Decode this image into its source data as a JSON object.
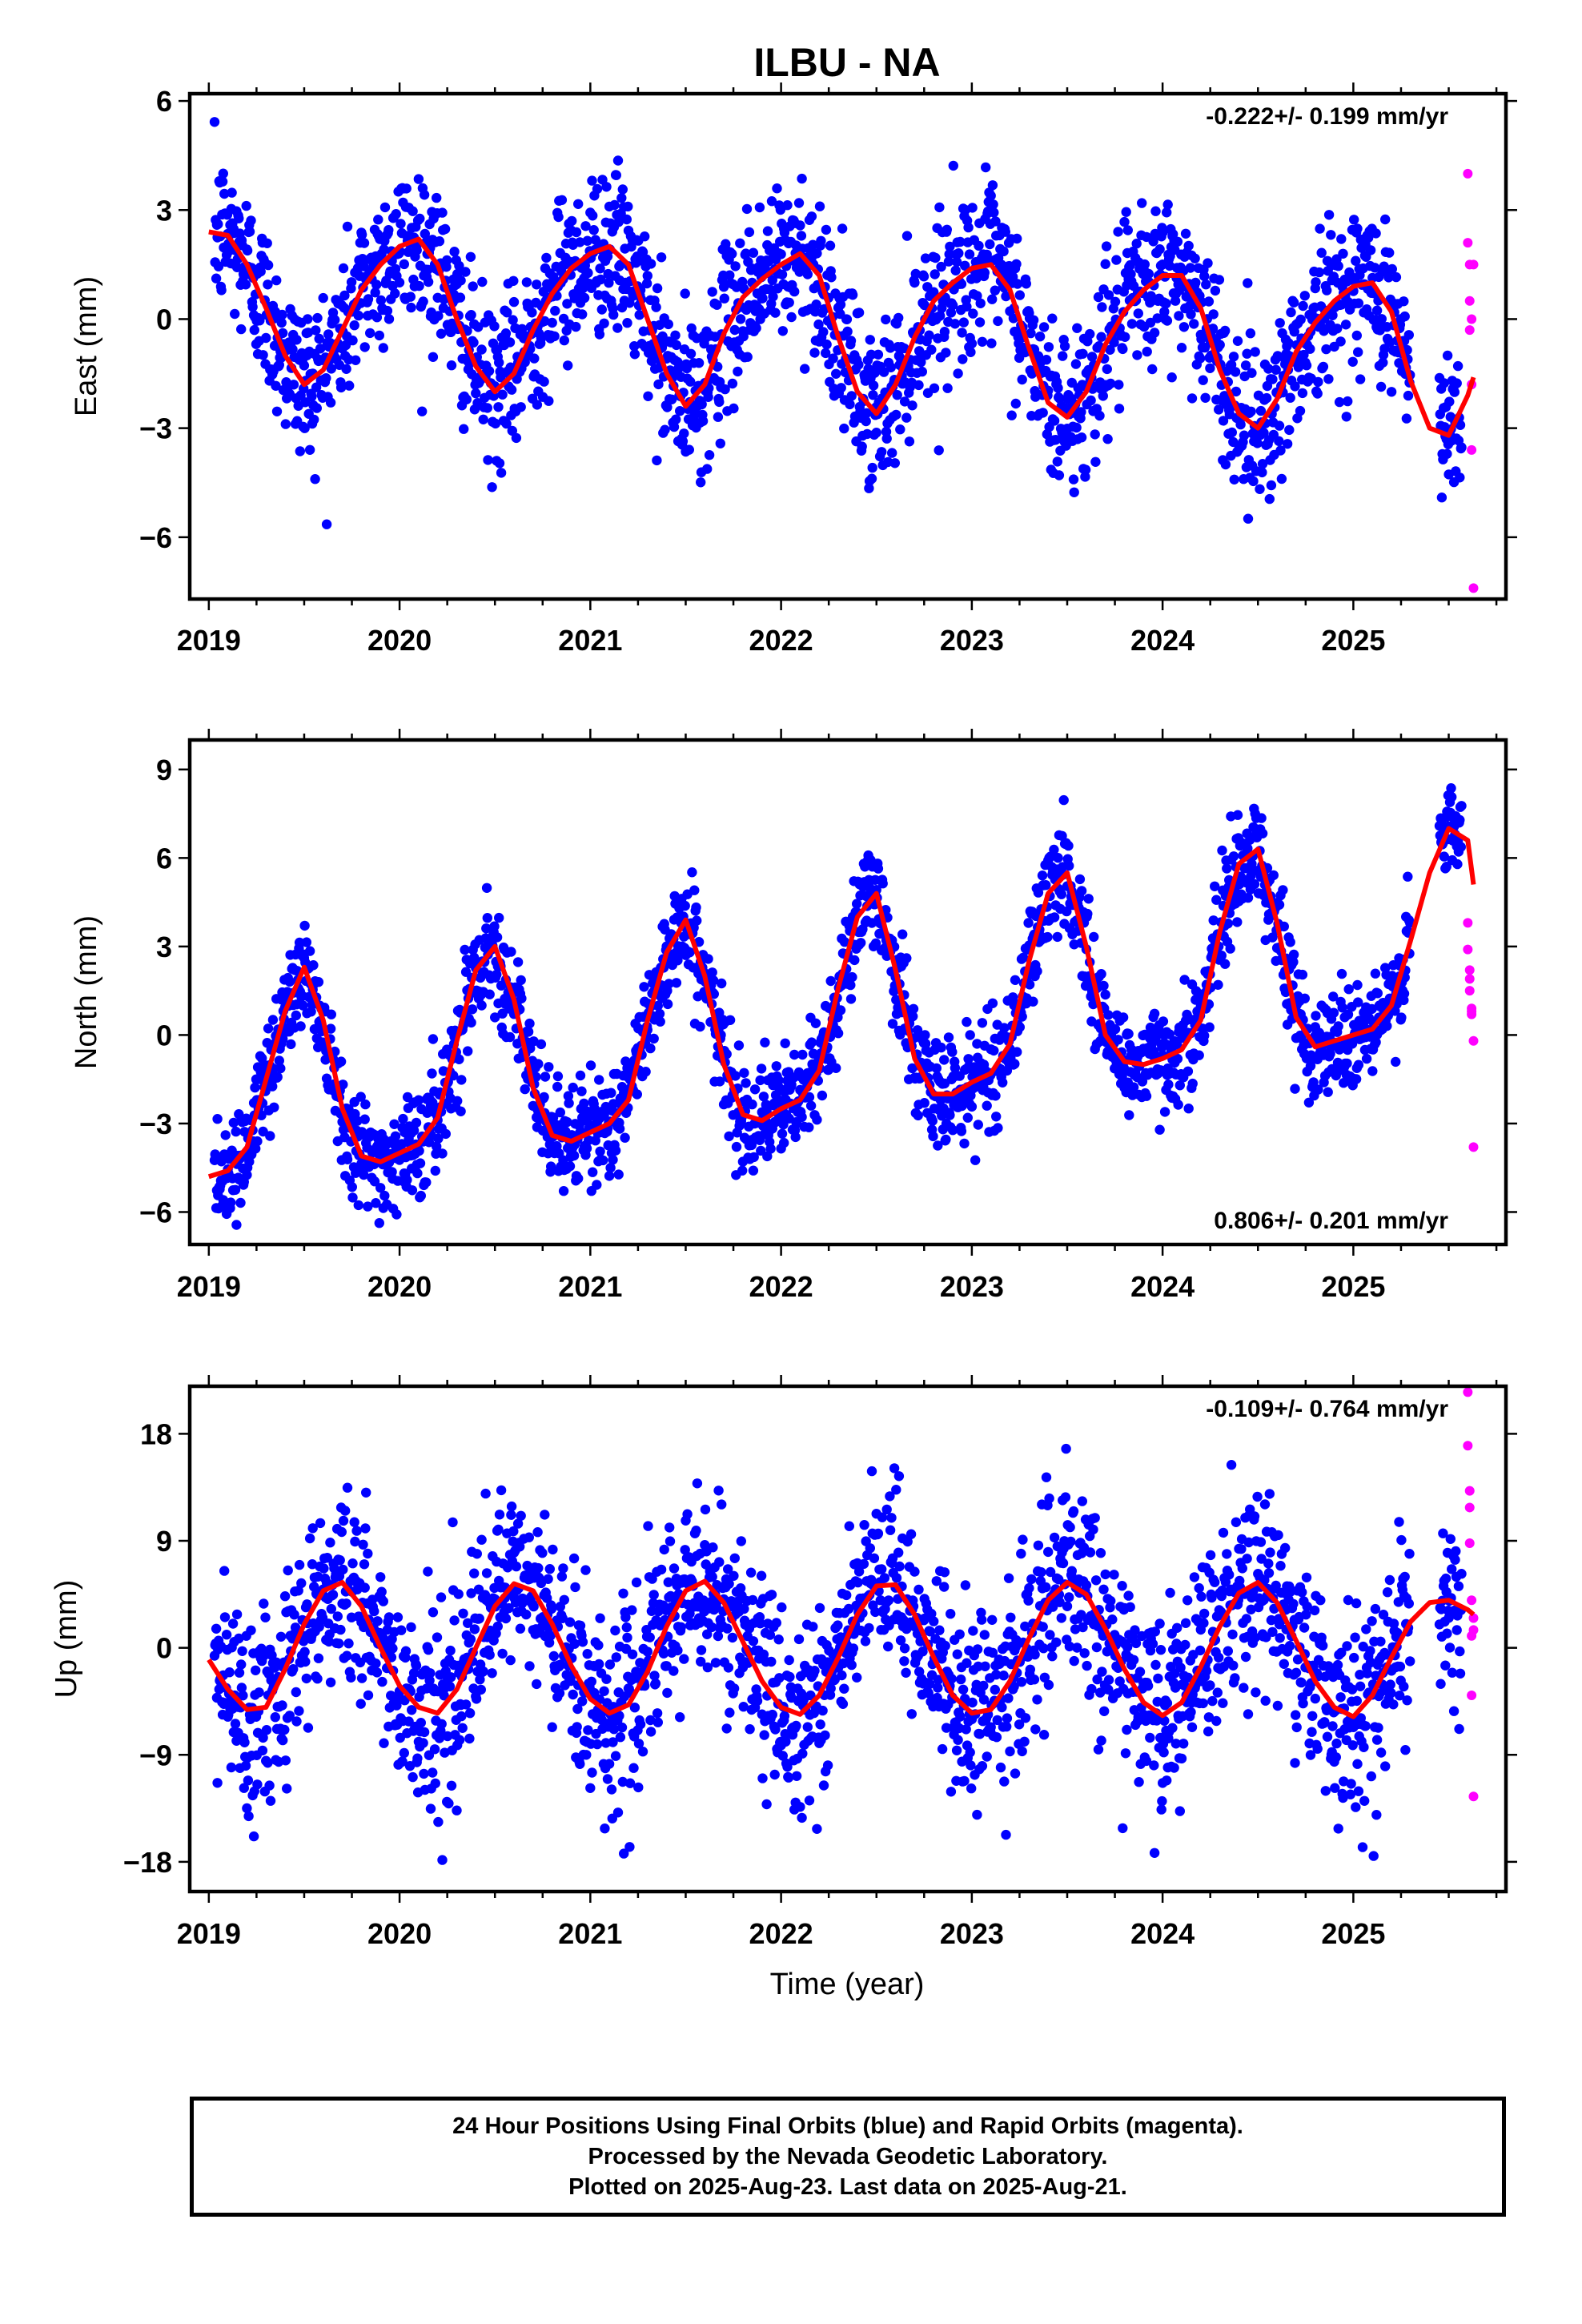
{
  "chart_data": {
    "title": "ILBU - NA",
    "type": "scatter",
    "xlabel": "Time (year)",
    "xlim": [
      2018.9,
      2025.8
    ],
    "x_ticks": [
      "2019",
      "2020",
      "2021",
      "2022",
      "2023",
      "2024",
      "2025"
    ],
    "colors": {
      "final": "#0000ff",
      "rapid": "#ff00ff",
      "fit": "#ff0000"
    },
    "panels": [
      {
        "id": "east",
        "ylabel": "East (mm)",
        "ylim": [
          -7.7,
          6.2
        ],
        "y_ticks": [
          -6,
          -3,
          0,
          3,
          6
        ],
        "y_tick_labels": [
          "−6",
          "−3",
          "0",
          "3",
          "6"
        ],
        "rate_label": "-0.222+/- 0.199 mm/yr",
        "rate_position": "top-right",
        "fit_x": [
          2019.0,
          2019.1,
          2019.2,
          2019.3,
          2019.4,
          2019.5,
          2019.6,
          2019.7,
          2019.8,
          2019.9,
          2020.0,
          2020.1,
          2020.2,
          2020.3,
          2020.4,
          2020.5,
          2020.6,
          2020.7,
          2020.8,
          2020.9,
          2021.0,
          2021.1,
          2021.2,
          2021.3,
          2021.4,
          2021.5,
          2021.6,
          2021.7,
          2021.8,
          2021.9,
          2022.0,
          2022.1,
          2022.2,
          2022.3,
          2022.4,
          2022.5,
          2022.6,
          2022.7,
          2022.8,
          2022.9,
          2023.0,
          2023.1,
          2023.2,
          2023.3,
          2023.4,
          2023.5,
          2023.6,
          2023.7,
          2023.8,
          2023.9,
          2024.0,
          2024.1,
          2024.2,
          2024.3,
          2024.4,
          2024.5,
          2024.6,
          2024.7,
          2024.8,
          2024.9,
          2025.0,
          2025.1,
          2025.2,
          2025.3,
          2025.4,
          2025.5,
          2025.6,
          2025.63
        ],
        "fit_y": [
          2.4,
          2.3,
          1.5,
          0.3,
          -1.0,
          -1.8,
          -1.4,
          -0.3,
          0.8,
          1.5,
          2.0,
          2.2,
          1.5,
          0.0,
          -1.3,
          -2.0,
          -1.5,
          -0.3,
          0.7,
          1.4,
          1.8,
          2.0,
          1.5,
          0.0,
          -1.5,
          -2.4,
          -1.8,
          -0.4,
          0.6,
          1.1,
          1.5,
          1.8,
          1.2,
          -0.5,
          -2.0,
          -2.6,
          -1.8,
          -0.5,
          0.5,
          1.0,
          1.4,
          1.5,
          0.8,
          -0.8,
          -2.3,
          -2.7,
          -2.0,
          -0.7,
          0.2,
          0.8,
          1.2,
          1.2,
          0.3,
          -1.4,
          -2.6,
          -3.0,
          -2.2,
          -0.9,
          -0.1,
          0.5,
          0.9,
          1.0,
          0.2,
          -1.7,
          -3.0,
          -3.2,
          -2.1,
          -1.6
        ],
        "rapid_x": [
          2025.6,
          2025.6,
          2025.61,
          2025.61,
          2025.61,
          2025.62,
          2025.62,
          2025.62,
          2025.63,
          2025.63
        ],
        "rapid_y": [
          4.0,
          2.1,
          1.5,
          0.5,
          -0.3,
          0.0,
          -1.8,
          -3.6,
          1.5,
          -7.4
        ],
        "seasonal": {
          "amplitude": 2.2,
          "phase_year": 2019.05,
          "scatter": 1.1,
          "trend_start": 0.0,
          "trend_end": -1.0,
          "x_end": 2025.57
        }
      },
      {
        "id": "north",
        "ylabel": "North (mm)",
        "ylim": [
          -7.1,
          10.0
        ],
        "y_ticks": [
          -6,
          -3,
          0,
          3,
          6,
          9
        ],
        "y_tick_labels": [
          "−6",
          "−3",
          "0",
          "3",
          "6",
          "9"
        ],
        "rate_label": "0.806+/- 0.201 mm/yr",
        "rate_position": "bottom-right",
        "fit_x": [
          2019.0,
          2019.1,
          2019.2,
          2019.3,
          2019.4,
          2019.5,
          2019.6,
          2019.7,
          2019.8,
          2019.9,
          2020.0,
          2020.1,
          2020.2,
          2020.3,
          2020.4,
          2020.5,
          2020.6,
          2020.7,
          2020.8,
          2020.9,
          2021.0,
          2021.1,
          2021.2,
          2021.3,
          2021.4,
          2021.5,
          2021.6,
          2021.7,
          2021.8,
          2021.9,
          2022.0,
          2022.1,
          2022.2,
          2022.3,
          2022.4,
          2022.5,
          2022.6,
          2022.7,
          2022.8,
          2022.9,
          2023.0,
          2023.1,
          2023.2,
          2023.3,
          2023.4,
          2023.5,
          2023.6,
          2023.7,
          2023.8,
          2023.9,
          2024.0,
          2024.1,
          2024.2,
          2024.3,
          2024.4,
          2024.5,
          2024.6,
          2024.7,
          2024.8,
          2024.9,
          2025.0,
          2025.1,
          2025.2,
          2025.3,
          2025.4,
          2025.5,
          2025.6,
          2025.63
        ],
        "fit_y": [
          -4.8,
          -4.6,
          -3.8,
          -1.5,
          0.8,
          2.3,
          0.5,
          -2.5,
          -4.1,
          -4.3,
          -4.0,
          -3.7,
          -2.8,
          -0.2,
          2.2,
          3.0,
          1.2,
          -1.8,
          -3.4,
          -3.6,
          -3.3,
          -3.0,
          -2.2,
          0.5,
          2.8,
          3.9,
          2.0,
          -1.0,
          -2.7,
          -2.9,
          -2.5,
          -2.2,
          -1.2,
          1.6,
          4.0,
          4.8,
          2.2,
          -0.8,
          -2.0,
          -2.0,
          -1.6,
          -1.3,
          -0.3,
          2.5,
          4.8,
          5.5,
          3.0,
          0.0,
          -0.9,
          -1.0,
          -0.8,
          -0.5,
          0.5,
          3.5,
          5.8,
          6.3,
          3.8,
          0.6,
          -0.4,
          -0.2,
          0.0,
          0.2,
          1.0,
          3.2,
          5.5,
          7.0,
          6.6,
          5.1
        ],
        "rapid_x": [
          2025.6,
          2025.6,
          2025.61,
          2025.61,
          2025.61,
          2025.62,
          2025.62,
          2025.62,
          2025.63,
          2025.63
        ],
        "rapid_y": [
          3.8,
          2.9,
          2.2,
          1.9,
          1.5,
          0.9,
          0.7,
          0.8,
          -0.2,
          -3.8
        ],
        "seasonal": {
          "amplitude": 3.6,
          "phase_year": 2019.5,
          "scatter": 0.9,
          "trend_start": -0.9,
          "trend_end": 4.2,
          "x_end": 2025.57
        }
      },
      {
        "id": "up",
        "ylabel": "Up (mm)",
        "ylim": [
          -20.5,
          22.0
        ],
        "y_ticks": [
          -18,
          -9,
          0,
          9,
          18
        ],
        "y_tick_labels": [
          "−18",
          "−9",
          "0",
          "9",
          "18"
        ],
        "rate_label": "-0.109+/- 0.764 mm/yr",
        "rate_position": "top-right",
        "fit_x": [
          2019.0,
          2019.1,
          2019.2,
          2019.3,
          2019.4,
          2019.5,
          2019.6,
          2019.7,
          2019.8,
          2019.9,
          2020.0,
          2020.1,
          2020.2,
          2020.3,
          2020.4,
          2020.5,
          2020.6,
          2020.7,
          2020.8,
          2020.9,
          2021.0,
          2021.1,
          2021.2,
          2021.3,
          2021.4,
          2021.5,
          2021.6,
          2021.7,
          2021.8,
          2021.9,
          2022.0,
          2022.1,
          2022.2,
          2022.3,
          2022.4,
          2022.5,
          2022.6,
          2022.7,
          2022.8,
          2022.9,
          2023.0,
          2023.1,
          2023.2,
          2023.3,
          2023.4,
          2023.5,
          2023.6,
          2023.7,
          2023.8,
          2023.9,
          2024.0,
          2024.1,
          2024.2,
          2024.3,
          2024.4,
          2024.5,
          2024.6,
          2024.7,
          2024.8,
          2024.9,
          2025.0,
          2025.1,
          2025.2,
          2025.3,
          2025.4,
          2025.5,
          2025.6,
          2025.63
        ],
        "fit_y": [
          -1.0,
          -3.5,
          -5.2,
          -5.0,
          -1.8,
          2.0,
          4.8,
          5.5,
          3.5,
          0.0,
          -3.2,
          -5.0,
          -5.5,
          -3.5,
          0.0,
          3.5,
          5.4,
          4.8,
          2.0,
          -1.5,
          -4.3,
          -5.5,
          -4.8,
          -2.0,
          1.8,
          4.8,
          5.6,
          3.8,
          0.5,
          -2.8,
          -5.0,
          -5.6,
          -4.0,
          -0.8,
          2.8,
          5.2,
          5.3,
          2.8,
          -0.8,
          -4.0,
          -5.5,
          -5.2,
          -2.8,
          0.8,
          4.0,
          5.5,
          4.5,
          1.6,
          -1.8,
          -4.6,
          -5.7,
          -4.6,
          -1.6,
          1.8,
          4.6,
          5.5,
          3.8,
          0.6,
          -2.8,
          -5.0,
          -5.8,
          -4.0,
          -0.8,
          2.2,
          3.8,
          4.0,
          3.2,
          2.8
        ],
        "rapid_x": [
          2025.6,
          2025.6,
          2025.61,
          2025.61,
          2025.61,
          2025.62,
          2025.62,
          2025.62,
          2025.63,
          2025.63,
          2025.63
        ],
        "rapid_y": [
          21.5,
          17.0,
          13.2,
          11.8,
          8.8,
          4.0,
          1.0,
          -4.0,
          -12.5,
          2.5,
          1.5
        ],
        "seasonal": {
          "amplitude": 5.5,
          "phase_year": 2019.7,
          "scatter": 4.0,
          "trend_start": 0.0,
          "trend_end": -0.7,
          "x_end": 2025.57
        }
      }
    ]
  },
  "caption": {
    "line1": "24 Hour Positions Using Final Orbits (blue) and Rapid Orbits (magenta).",
    "line2": "Processed by the Nevada Geodetic Laboratory.",
    "line3": "Plotted on 2025-Aug-23. Last data on 2025-Aug-21."
  }
}
